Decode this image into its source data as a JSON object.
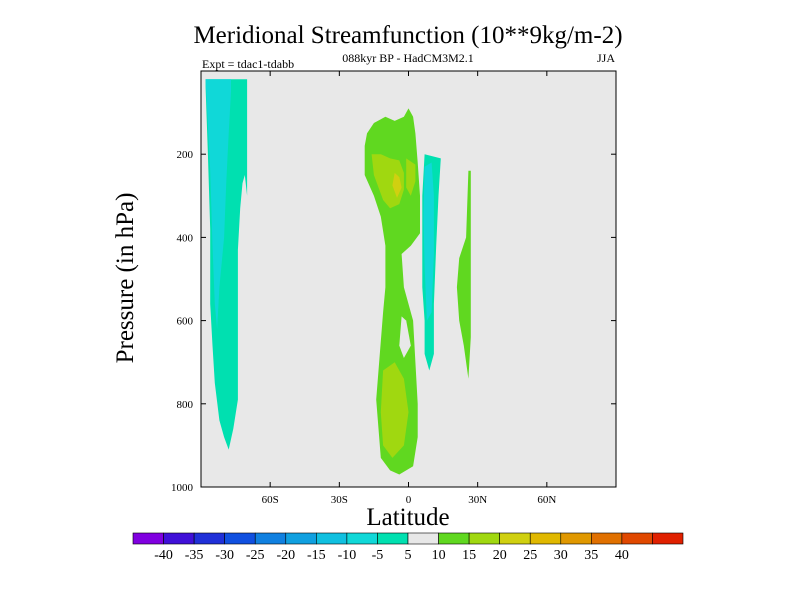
{
  "chart_data": {
    "type": "contour",
    "title": "Meridional Streamfunction (10**9kg/m-2)",
    "subtitle": "088kyr BP - HadCM3M2.1",
    "left_label": "Expt = tdac1-tdabb",
    "right_label": "JJA",
    "xlabel": "Latitude",
    "ylabel": "Pressure (in hPa)",
    "xlim": [
      -90,
      90
    ],
    "ylim": [
      1000,
      0
    ],
    "x_ticks": [
      {
        "value": -60,
        "label": "60S"
      },
      {
        "value": -30,
        "label": "30S"
      },
      {
        "value": 0,
        "label": "0"
      },
      {
        "value": 30,
        "label": "30N"
      },
      {
        "value": 60,
        "label": "60N"
      }
    ],
    "y_ticks": [
      {
        "value": 200,
        "label": "200"
      },
      {
        "value": 400,
        "label": "400"
      },
      {
        "value": 600,
        "label": "600"
      },
      {
        "value": 800,
        "label": "800"
      },
      {
        "value": 1000,
        "label": "1000"
      }
    ],
    "background_color": "#e8e8e8",
    "colorbar": {
      "levels": [
        -40,
        -35,
        -30,
        -25,
        -20,
        -15,
        -10,
        -5,
        5,
        10,
        15,
        20,
        25,
        30,
        35,
        40
      ],
      "labels": [
        "-40",
        "-35",
        "-30",
        "-25",
        "-20",
        "-15",
        "-10",
        "-5",
        "5",
        "10",
        "15",
        "20",
        "25",
        "30",
        "35",
        "40"
      ],
      "colors": [
        "#8000e0",
        "#4010d8",
        "#2030d8",
        "#1050e0",
        "#1080e0",
        "#10a0e0",
        "#10c0e0",
        "#10d8d8",
        "#00e0b0",
        "#e8e8e8",
        "#60d820",
        "#a0d810",
        "#d0d010",
        "#e0b800",
        "#e09800",
        "#e07000",
        "#e04800",
        "#e02000"
      ]
    },
    "regions": [
      {
        "name": "southern-high-lat-cell",
        "level": -10,
        "color": "#00e0b0",
        "points": [
          [
            -88,
            20
          ],
          [
            -88,
            40
          ],
          [
            -87,
            200
          ],
          [
            -86,
            380
          ],
          [
            -86,
            560
          ],
          [
            -85,
            660
          ],
          [
            -84,
            750
          ],
          [
            -82,
            840
          ],
          [
            -80,
            880
          ],
          [
            -78,
            910
          ],
          [
            -76,
            860
          ],
          [
            -74,
            790
          ],
          [
            -74,
            700
          ],
          [
            -74,
            620
          ],
          [
            -74,
            560
          ],
          [
            -74,
            430
          ],
          [
            -73,
            330
          ],
          [
            -72,
            270
          ],
          [
            -71,
            250
          ],
          [
            -70,
            300
          ],
          [
            -70,
            230
          ],
          [
            -70,
            170
          ],
          [
            -70,
            90
          ],
          [
            -70,
            20
          ]
        ]
      },
      {
        "name": "southern-high-lat-core",
        "level": -15,
        "color": "#10d8d8",
        "points": [
          [
            -88,
            20
          ],
          [
            -86,
            240
          ],
          [
            -85,
            420
          ],
          [
            -84,
            560
          ],
          [
            -83,
            620
          ],
          [
            -82,
            520
          ],
          [
            -80,
            400
          ],
          [
            -79,
            260
          ],
          [
            -78,
            150
          ],
          [
            -77,
            50
          ],
          [
            -77,
            20
          ]
        ]
      },
      {
        "name": "tropical-upper-cell",
        "level": 5,
        "color": "#60d820",
        "points": [
          [
            -19,
            180
          ],
          [
            -19,
            250
          ],
          [
            -15,
            300
          ],
          [
            -12,
            350
          ],
          [
            -10,
            420
          ],
          [
            -10,
            520
          ],
          [
            -11,
            580
          ],
          [
            -12,
            650
          ],
          [
            -13,
            720
          ],
          [
            -14,
            790
          ],
          [
            -13,
            860
          ],
          [
            -12,
            930
          ],
          [
            -8,
            960
          ],
          [
            -4,
            970
          ],
          [
            2,
            950
          ],
          [
            4,
            880
          ],
          [
            4,
            800
          ],
          [
            3,
            700
          ],
          [
            2,
            600
          ],
          [
            -2,
            520
          ],
          [
            -3,
            440
          ],
          [
            1,
            420
          ],
          [
            5,
            390
          ],
          [
            5,
            300
          ],
          [
            4,
            220
          ],
          [
            3,
            150
          ],
          [
            2,
            110
          ],
          [
            0,
            90
          ],
          [
            -2,
            110
          ],
          [
            -6,
            120
          ],
          [
            -10,
            110
          ],
          [
            -15,
            125
          ],
          [
            -18,
            150
          ]
        ]
      },
      {
        "name": "tropical-upper-core",
        "level": 10,
        "color": "#a0d810",
        "points": [
          [
            -16,
            200
          ],
          [
            -15,
            250
          ],
          [
            -11,
            310
          ],
          [
            -8,
            330
          ],
          [
            -4,
            320
          ],
          [
            -2,
            285
          ],
          [
            -2,
            245
          ],
          [
            -4,
            215
          ],
          [
            -8,
            210
          ],
          [
            -12,
            200
          ]
        ]
      },
      {
        "name": "tropical-upper-core-2",
        "level": 10,
        "color": "#a0d810",
        "points": [
          [
            -1,
            210
          ],
          [
            -1,
            280
          ],
          [
            1,
            300
          ],
          [
            3,
            265
          ],
          [
            3,
            225
          ]
        ]
      },
      {
        "name": "tropical-peak",
        "level": 15,
        "color": "#d0d010",
        "points": [
          [
            -6,
            245
          ],
          [
            -7,
            275
          ],
          [
            -5,
            305
          ],
          [
            -3,
            280
          ],
          [
            -4,
            255
          ]
        ]
      },
      {
        "name": "tropical-lower-core",
        "level": 10,
        "color": "#a0d810",
        "points": [
          [
            -11,
            720
          ],
          [
            -12,
            820
          ],
          [
            -11,
            900
          ],
          [
            -7,
            930
          ],
          [
            -2,
            900
          ],
          [
            0,
            820
          ],
          [
            -2,
            740
          ],
          [
            -6,
            700
          ]
        ]
      },
      {
        "name": "tropical-gap",
        "level": 0,
        "color": "#e8e8e8",
        "points": [
          [
            -3,
            590
          ],
          [
            -4,
            660
          ],
          [
            -2,
            690
          ],
          [
            1,
            660
          ],
          [
            -1,
            600
          ]
        ]
      },
      {
        "name": "nh-subtropical-cell",
        "level": -5,
        "color": "#00e0b0",
        "points": [
          [
            7,
            200
          ],
          [
            6,
            300
          ],
          [
            6,
            420
          ],
          [
            6,
            520
          ],
          [
            7,
            600
          ],
          [
            7,
            680
          ],
          [
            9,
            720
          ],
          [
            11,
            680
          ],
          [
            11,
            560
          ],
          [
            12,
            420
          ],
          [
            13,
            300
          ],
          [
            14,
            210
          ]
        ]
      },
      {
        "name": "nh-subtropical-core",
        "level": -10,
        "color": "#10d8d8",
        "points": [
          [
            7,
            230
          ],
          [
            6.5,
            350
          ],
          [
            7,
            470
          ],
          [
            8,
            600
          ],
          [
            10,
            580
          ],
          [
            11,
            440
          ],
          [
            11,
            300
          ],
          [
            10,
            220
          ]
        ]
      },
      {
        "name": "nh-midlat-cell",
        "level": 5,
        "color": "#60d820",
        "points": [
          [
            26,
            240
          ],
          [
            25,
            400
          ],
          [
            22,
            450
          ],
          [
            21,
            520
          ],
          [
            22,
            600
          ],
          [
            24,
            660
          ],
          [
            26,
            740
          ],
          [
            27,
            640
          ],
          [
            27,
            480
          ],
          [
            27,
            300
          ],
          [
            27,
            240
          ]
        ]
      }
    ]
  }
}
